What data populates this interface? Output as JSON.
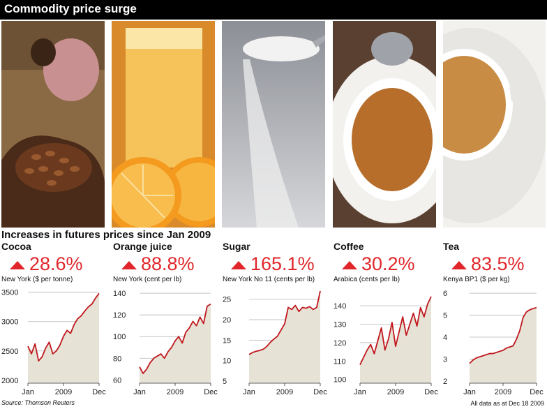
{
  "header": {
    "title": "Commodity price surge"
  },
  "subtitle": "Increases in futures prices since Jan 2009",
  "footer": {
    "source": "Source: Thomson Reuters",
    "as_of": "All data as at Dec 18 2009"
  },
  "colors": {
    "line": "#c0171d",
    "fill": "#e6e2d6",
    "grid": "#b5b5b5",
    "change": "#e0262b"
  },
  "photos": [
    "cocoa-beans-photo",
    "orange-juice-photo",
    "sugar-photo",
    "coffee-cup-photo",
    "tea-cup-photo"
  ],
  "chart_data": [
    {
      "type": "line",
      "name": "Cocoa",
      "change": "28.6%",
      "unit_label": "New York  ($ per tonne)",
      "yticks": [
        2000,
        2500,
        3000,
        3500
      ],
      "ytick_labels": [
        "2000",
        "2500",
        "3000",
        "3500"
      ],
      "ylim": [
        1950,
        3520
      ],
      "xtick_labels": [
        "Jan",
        "2009",
        "Dec"
      ],
      "x": [
        0,
        0.05,
        0.1,
        0.15,
        0.2,
        0.25,
        0.3,
        0.35,
        0.4,
        0.45,
        0.5,
        0.55,
        0.6,
        0.65,
        0.7,
        0.75,
        0.8,
        0.85,
        0.9,
        0.95,
        1
      ],
      "values": [
        2580,
        2450,
        2620,
        2330,
        2400,
        2550,
        2650,
        2450,
        2500,
        2600,
        2750,
        2850,
        2800,
        2950,
        3050,
        3100,
        3180,
        3250,
        3300,
        3400,
        3480
      ]
    },
    {
      "type": "line",
      "name": "Orange juice",
      "change": "88.8%",
      "unit_label": "New York  (cent per lb)",
      "yticks": [
        60,
        80,
        100,
        120,
        140
      ],
      "ytick_labels": [
        "60",
        "80",
        "100",
        "120",
        "140"
      ],
      "ylim": [
        57,
        142
      ],
      "xtick_labels": [
        "Jan",
        "2009",
        "Dec"
      ],
      "x": [
        0,
        0.05,
        0.1,
        0.15,
        0.2,
        0.25,
        0.3,
        0.35,
        0.4,
        0.45,
        0.5,
        0.55,
        0.6,
        0.65,
        0.7,
        0.75,
        0.8,
        0.85,
        0.9,
        0.95,
        1
      ],
      "values": [
        72,
        66,
        70,
        76,
        80,
        82,
        84,
        80,
        86,
        90,
        96,
        100,
        94,
        104,
        108,
        114,
        110,
        118,
        112,
        128,
        130
      ]
    },
    {
      "type": "line",
      "name": "Sugar",
      "change": "165.1%",
      "unit_label": "New York No 11  (cents per lb)",
      "yticks": [
        5,
        10,
        15,
        20,
        25
      ],
      "ytick_labels": [
        "5",
        "10",
        "15",
        "20",
        "25"
      ],
      "ylim": [
        4.5,
        27
      ],
      "xtick_labels": [
        "Jan",
        "2009",
        "Dec"
      ],
      "x": [
        0,
        0.05,
        0.1,
        0.15,
        0.2,
        0.25,
        0.3,
        0.35,
        0.4,
        0.45,
        0.5,
        0.55,
        0.6,
        0.65,
        0.7,
        0.75,
        0.8,
        0.85,
        0.9,
        0.95,
        1
      ],
      "values": [
        11.5,
        12,
        12.3,
        12.5,
        12.8,
        13.5,
        14.5,
        15.3,
        16,
        17.5,
        19,
        23,
        22.5,
        23.5,
        22,
        23,
        22.8,
        23.2,
        22.5,
        23,
        27
      ]
    },
    {
      "type": "line",
      "name": "Coffee",
      "change": "30.2%",
      "unit_label": "Arabica  (cents per lb)",
      "yticks": [
        100,
        110,
        120,
        130,
        140
      ],
      "ytick_labels": [
        "100",
        "110",
        "120",
        "130",
        "140"
      ],
      "ylim": [
        98,
        148
      ],
      "xtick_labels": [
        "Jan",
        "2009",
        "Dec"
      ],
      "x": [
        0,
        0.05,
        0.1,
        0.15,
        0.2,
        0.25,
        0.3,
        0.35,
        0.4,
        0.45,
        0.5,
        0.55,
        0.6,
        0.65,
        0.7,
        0.75,
        0.8,
        0.85,
        0.9,
        0.95,
        1
      ],
      "values": [
        108,
        112,
        116,
        119,
        114,
        121,
        128,
        116,
        122,
        131,
        118,
        126,
        134,
        124,
        130,
        136,
        129,
        139,
        134,
        141,
        145
      ]
    },
    {
      "type": "line",
      "name": "Tea",
      "change": "83.5%",
      "unit_label": "Kenya BP1  ($ per kg)",
      "yticks": [
        2,
        3,
        4,
        5,
        6
      ],
      "ytick_labels": [
        "2",
        "3",
        "4",
        "5",
        "6"
      ],
      "ylim": [
        1.9,
        6.1
      ],
      "xtick_labels": [
        "Jan",
        "2009",
        "Dec"
      ],
      "x": [
        0,
        0.05,
        0.1,
        0.15,
        0.2,
        0.25,
        0.3,
        0.35,
        0.4,
        0.45,
        0.5,
        0.55,
        0.6,
        0.65,
        0.7,
        0.75,
        0.8,
        0.85,
        0.9,
        0.95,
        1
      ],
      "values": [
        2.8,
        2.95,
        3.05,
        3.1,
        3.15,
        3.2,
        3.25,
        3.25,
        3.3,
        3.35,
        3.4,
        3.5,
        3.55,
        3.6,
        3.9,
        4.3,
        4.9,
        5.15,
        5.25,
        5.3,
        5.35
      ]
    }
  ]
}
